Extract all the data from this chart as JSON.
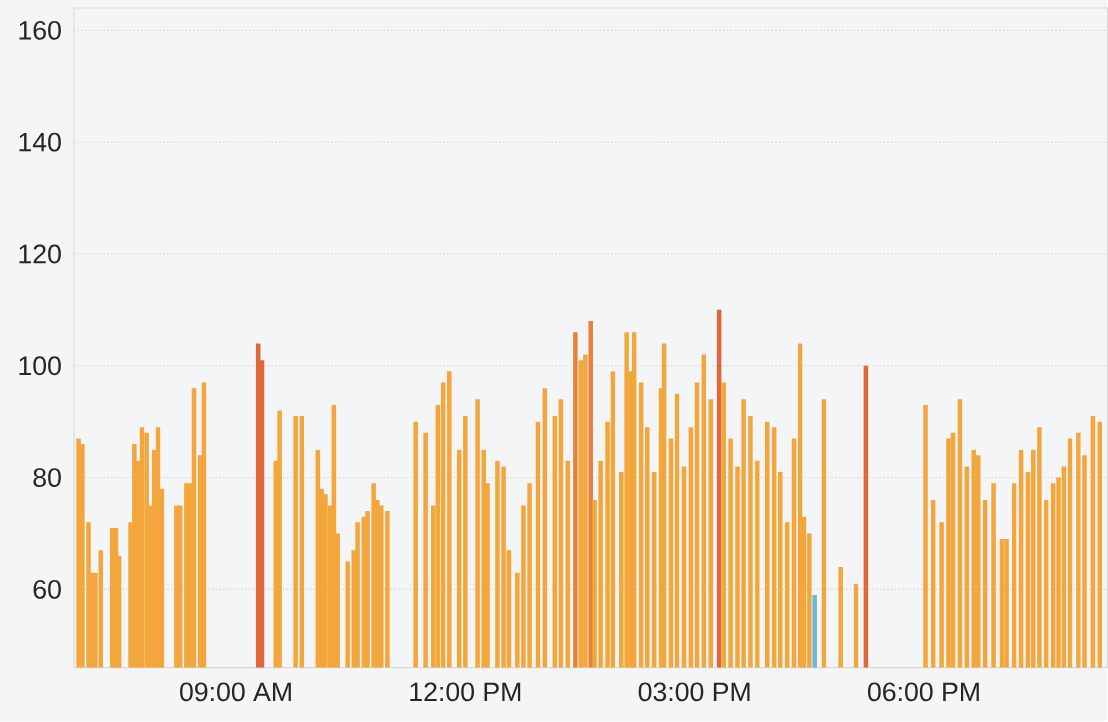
{
  "chart_data": {
    "type": "bar",
    "x": [
      6.94,
      6.99,
      7.07,
      7.11,
      7.16,
      7.23,
      7.38,
      7.43,
      7.47,
      7.62,
      7.67,
      7.72,
      7.77,
      7.83,
      7.88,
      7.93,
      7.98,
      8.03,
      8.22,
      8.27,
      8.35,
      8.4,
      8.45,
      8.53,
      8.58,
      9.29,
      9.34,
      9.52,
      9.57,
      9.78,
      9.86,
      10.07,
      10.12,
      10.17,
      10.23,
      10.28,
      10.33,
      10.46,
      10.54,
      10.59,
      10.67,
      10.72,
      10.8,
      10.85,
      10.9,
      10.98,
      11.35,
      11.48,
      11.58,
      11.64,
      11.71,
      11.79,
      11.92,
      12.0,
      12.16,
      12.24,
      12.29,
      12.42,
      12.5,
      12.57,
      12.68,
      12.76,
      12.84,
      12.95,
      13.04,
      13.17,
      13.25,
      13.34,
      13.44,
      13.51,
      13.57,
      13.64,
      13.69,
      13.77,
      13.86,
      13.93,
      14.04,
      14.11,
      14.17,
      14.21,
      14.3,
      14.38,
      14.47,
      14.56,
      14.6,
      14.69,
      14.77,
      14.86,
      14.95,
      15.03,
      15.12,
      15.21,
      15.32,
      15.38,
      15.47,
      15.56,
      15.64,
      15.73,
      15.82,
      15.95,
      16.04,
      16.12,
      16.21,
      16.3,
      16.38,
      16.43,
      16.5,
      16.57,
      16.69,
      16.91,
      17.11,
      17.24,
      18.02,
      18.12,
      18.23,
      18.32,
      18.38,
      18.47,
      18.56,
      18.65,
      18.71,
      18.8,
      18.91,
      19.02,
      19.08,
      19.18,
      19.27,
      19.36,
      19.43,
      19.51,
      19.6,
      19.69,
      19.76,
      19.83,
      19.91,
      20.02,
      20.1,
      20.21,
      20.3
    ],
    "values": [
      87,
      86,
      72,
      63,
      63,
      67,
      71,
      71,
      66,
      72,
      86,
      83,
      89,
      88,
      75,
      85,
      89,
      78,
      75,
      75,
      79,
      79,
      96,
      84,
      97,
      104,
      101,
      83,
      92,
      91,
      91,
      85,
      78,
      77,
      75,
      93,
      70,
      65,
      67,
      72,
      73,
      74,
      79,
      76,
      75,
      74,
      90,
      88,
      75,
      93,
      97,
      99,
      85,
      91,
      94,
      85,
      79,
      83,
      82,
      67,
      63,
      75,
      79,
      90,
      96,
      91,
      94,
      83,
      106,
      101,
      102,
      108,
      76,
      83,
      90,
      99,
      81,
      106,
      99,
      106,
      97,
      89,
      81,
      96,
      104,
      87,
      95,
      82,
      89,
      97,
      102,
      94,
      110,
      97,
      87,
      82,
      94,
      91,
      83,
      90,
      89,
      81,
      72,
      87,
      104,
      73,
      70,
      59,
      94,
      64,
      61,
      100,
      93,
      76,
      72,
      87,
      88,
      94,
      82,
      85,
      84,
      76,
      79,
      69,
      69,
      79,
      85,
      81,
      85,
      89,
      76,
      79,
      80,
      82,
      87,
      88,
      84,
      91,
      90
    ],
    "colors": [
      "#f2a63c",
      "#f2a63c",
      "#f2a63c",
      "#f2a63c",
      "#f2a63c",
      "#f2a63c",
      "#f2a63c",
      "#f2a63c",
      "#f2a63c",
      "#f2a63c",
      "#f2a63c",
      "#f2a63c",
      "#f2a63c",
      "#f2a63c",
      "#f2a63c",
      "#f2a63c",
      "#f2a63c",
      "#f2a63c",
      "#f2a63c",
      "#f2a63c",
      "#f2a63c",
      "#f2a63c",
      "#f2a63c",
      "#f2a63c",
      "#f2a63c",
      "#e0673b",
      "#e0673b",
      "#f2a63c",
      "#f2a63c",
      "#f2a63c",
      "#f2a63c",
      "#f2a63c",
      "#f2a63c",
      "#f2a63c",
      "#f2a63c",
      "#f2a63c",
      "#f2a63c",
      "#f2a63c",
      "#f2a63c",
      "#f2a63c",
      "#f2a63c",
      "#f2a63c",
      "#f2a63c",
      "#f2a63c",
      "#f2a63c",
      "#f2a63c",
      "#f2a63c",
      "#f2a63c",
      "#f2a63c",
      "#f2a63c",
      "#f2a63c",
      "#f2a63c",
      "#f2a63c",
      "#f2a63c",
      "#f2a63c",
      "#f2a63c",
      "#f2a63c",
      "#f2a63c",
      "#f2a63c",
      "#f2a63c",
      "#f2a63c",
      "#f2a63c",
      "#f2a63c",
      "#f2a63c",
      "#f2a63c",
      "#f2a63c",
      "#f2a63c",
      "#f2a63c",
      "#e8803a",
      "#f2a63c",
      "#f2a63c",
      "#e8803a",
      "#f2a63c",
      "#f2a63c",
      "#f2a63c",
      "#f2a63c",
      "#f2a63c",
      "#f2a63c",
      "#f2a63c",
      "#f2a63c",
      "#f2a63c",
      "#f2a63c",
      "#f2a63c",
      "#f2a63c",
      "#f2a63c",
      "#f2a63c",
      "#f2a63c",
      "#f2a63c",
      "#f2a63c",
      "#f2a63c",
      "#f2a63c",
      "#f2a63c",
      "#e0673b",
      "#f2a63c",
      "#f2a63c",
      "#f2a63c",
      "#f2a63c",
      "#f2a63c",
      "#f2a63c",
      "#f2a63c",
      "#f2a63c",
      "#f2a63c",
      "#f2a63c",
      "#f2a63c",
      "#f2a63c",
      "#f2a63c",
      "#f2a63c",
      "#6cb8d6",
      "#f2a63c",
      "#f2a63c",
      "#f2a63c",
      "#e0673b",
      "#f2a63c",
      "#f2a63c",
      "#f2a63c",
      "#f2a63c",
      "#f2a63c",
      "#f2a63c",
      "#f2a63c",
      "#f2a63c",
      "#f2a63c",
      "#f2a63c",
      "#f2a63c",
      "#f2a63c",
      "#f2a63c",
      "#f2a63c",
      "#f2a63c",
      "#f2a63c",
      "#f2a63c",
      "#f2a63c",
      "#f2a63c",
      "#f2a63c",
      "#f2a63c",
      "#f2a63c",
      "#f2a63c",
      "#f2a63c",
      "#f2a63c",
      "#f2a63c",
      "#f2a63c"
    ],
    "xlim": [
      6.88,
      20.4
    ],
    "ylim": [
      46,
      164
    ],
    "xticks": [
      {
        "value": 9,
        "label": "09:00 AM"
      },
      {
        "value": 12,
        "label": "12:00 PM"
      },
      {
        "value": 15,
        "label": "03:00 PM"
      },
      {
        "value": 18,
        "label": "06:00 PM"
      }
    ],
    "yticks": [
      60,
      80,
      100,
      120,
      140,
      160
    ],
    "grid": "y"
  }
}
